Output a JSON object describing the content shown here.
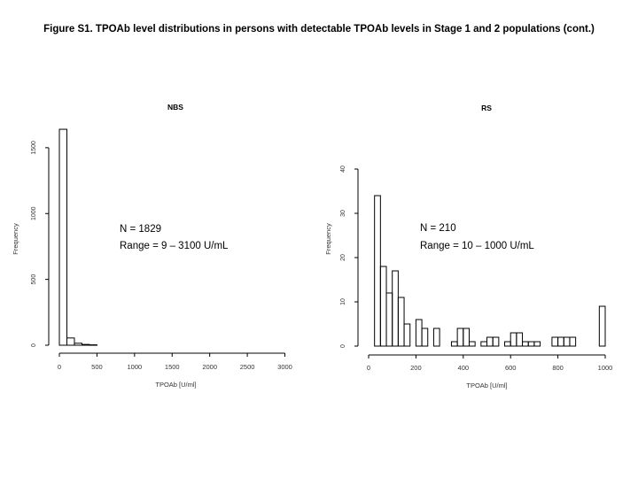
{
  "figure": {
    "caption": "Figure S1. TPOAb level distributions in persons with detectable TPOAb levels in Stage 1 and 2 populations (cont.)"
  },
  "chart_data": [
    {
      "type": "bar",
      "title": "NBS",
      "xlabel": "TPOAb [U/ml]",
      "ylabel": "Frequency",
      "xticks": [
        "0",
        "500",
        "1000",
        "1500",
        "2000",
        "2500",
        "3000"
      ],
      "yticks": [
        "0",
        "500",
        "1000",
        "1500"
      ],
      "xlim": [
        0,
        3100
      ],
      "ylim": [
        0,
        1600
      ],
      "bins": [
        {
          "x0": 0,
          "x1": 100,
          "count": 1640
        },
        {
          "x0": 100,
          "x1": 200,
          "count": 55
        },
        {
          "x0": 200,
          "x1": 300,
          "count": 15
        },
        {
          "x0": 300,
          "x1": 400,
          "count": 6
        },
        {
          "x0": 400,
          "x1": 500,
          "count": 3
        }
      ],
      "annotations": [
        "N = 1829",
        "Range = 9 – 3100 U/mL"
      ]
    },
    {
      "type": "bar",
      "title": "RS",
      "xlabel": "TPOAb [U/ml]",
      "ylabel": "Frequency",
      "xticks": [
        "0",
        "200",
        "400",
        "600",
        "800",
        "1000"
      ],
      "yticks": [
        "0",
        "10",
        "20",
        "30",
        "40"
      ],
      "xlim": [
        0,
        1000
      ],
      "ylim": [
        0,
        40
      ],
      "bins": [
        {
          "x0": 25,
          "x1": 50,
          "count": 34
        },
        {
          "x0": 50,
          "x1": 75,
          "count": 18
        },
        {
          "x0": 75,
          "x1": 100,
          "count": 12
        },
        {
          "x0": 100,
          "x1": 125,
          "count": 17
        },
        {
          "x0": 125,
          "x1": 150,
          "count": 11
        },
        {
          "x0": 150,
          "x1": 175,
          "count": 5
        },
        {
          "x0": 200,
          "x1": 225,
          "count": 6
        },
        {
          "x0": 225,
          "x1": 250,
          "count": 4
        },
        {
          "x0": 275,
          "x1": 300,
          "count": 4
        },
        {
          "x0": 350,
          "x1": 375,
          "count": 1
        },
        {
          "x0": 375,
          "x1": 400,
          "count": 4
        },
        {
          "x0": 400,
          "x1": 425,
          "count": 4
        },
        {
          "x0": 425,
          "x1": 450,
          "count": 1
        },
        {
          "x0": 475,
          "x1": 500,
          "count": 1
        },
        {
          "x0": 500,
          "x1": 525,
          "count": 2
        },
        {
          "x0": 525,
          "x1": 550,
          "count": 2
        },
        {
          "x0": 575,
          "x1": 600,
          "count": 1
        },
        {
          "x0": 600,
          "x1": 625,
          "count": 3
        },
        {
          "x0": 625,
          "x1": 650,
          "count": 3
        },
        {
          "x0": 650,
          "x1": 675,
          "count": 1
        },
        {
          "x0": 675,
          "x1": 700,
          "count": 1
        },
        {
          "x0": 700,
          "x1": 725,
          "count": 1
        },
        {
          "x0": 775,
          "x1": 800,
          "count": 2
        },
        {
          "x0": 800,
          "x1": 825,
          "count": 2
        },
        {
          "x0": 825,
          "x1": 850,
          "count": 2
        },
        {
          "x0": 850,
          "x1": 875,
          "count": 2
        },
        {
          "x0": 975,
          "x1": 1000,
          "count": 9
        }
      ],
      "annotations": [
        "N = 210",
        "Range = 10 – 1000 U/mL"
      ]
    }
  ]
}
